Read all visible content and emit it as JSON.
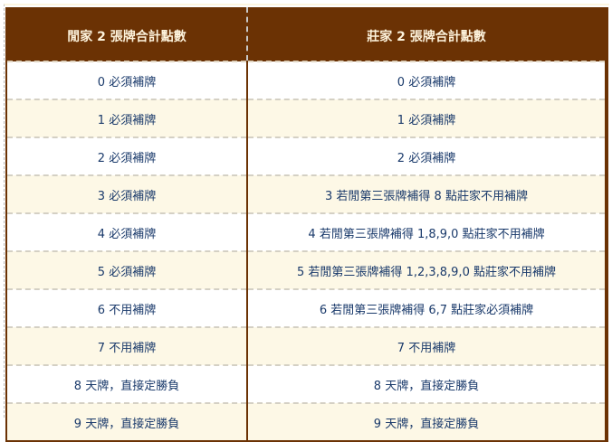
{
  "colors": {
    "header_bg": "#6b3204",
    "header_text": "#fdf3dc",
    "cell_text": "#1a3a6b",
    "alt_row": "#fdf8e6"
  },
  "table": {
    "headers": [
      "閒家 2 張牌合計點數",
      "莊家 2 張牌合計點數"
    ],
    "rows": [
      [
        "0 必須補牌",
        "0 必須補牌"
      ],
      [
        "1 必須補牌",
        "1 必須補牌"
      ],
      [
        "2 必須補牌",
        "2 必須補牌"
      ],
      [
        "3 必須補牌",
        "3 若閒第三張牌補得 8 點莊家不用補牌"
      ],
      [
        "4 必須補牌",
        "4 若閒第三張牌補得 1,8,9,0 點莊家不用補牌"
      ],
      [
        "5 必須補牌",
        "5 若閒第三張牌補得 1,2,3,8,9,0 點莊家不用補牌"
      ],
      [
        "6 不用補牌",
        "6 若閒第三張牌補得 6,7 點莊家必須補牌"
      ],
      [
        "7 不用補牌",
        "7 不用補牌"
      ],
      [
        "8 天牌，直接定勝負",
        "8 天牌，直接定勝負"
      ],
      [
        "9 天牌，直接定勝負",
        "9 天牌，直接定勝負"
      ]
    ]
  }
}
